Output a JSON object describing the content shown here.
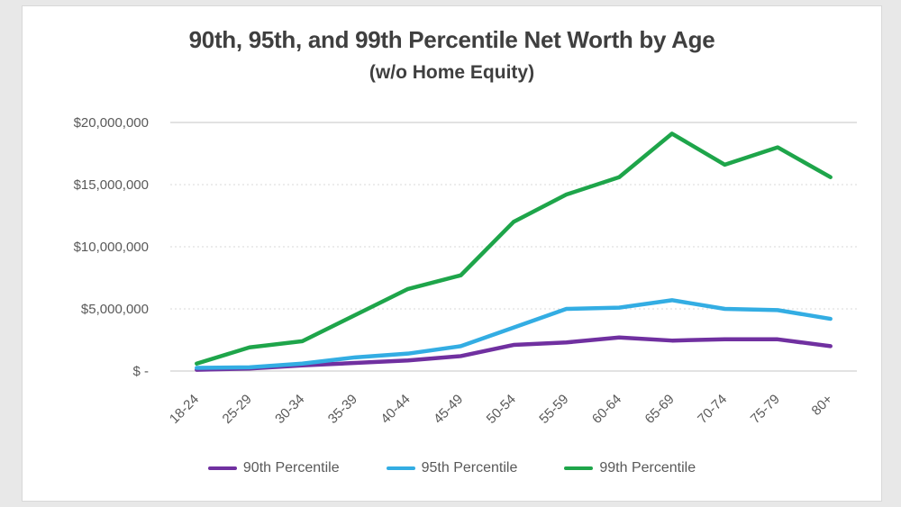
{
  "page": {
    "background_color": "#e8e8e8",
    "card_background": "#ffffff",
    "card_border_color": "#d8d8d8"
  },
  "chart_data": {
    "type": "line",
    "title": "90th, 95th, and 99th Percentile Net Worth by Age",
    "subtitle": "(w/o Home Equity)",
    "title_color": "#3f3f3f",
    "axis_label_color": "#595959",
    "gridline_color": "#d9d9d9",
    "axis_line_color": "#c6c6c6",
    "grid": true,
    "legend_position": "bottom",
    "categories": [
      "18-24",
      "25-29",
      "30-34",
      "35-39",
      "40-44",
      "45-49",
      "50-54",
      "55-59",
      "60-64",
      "65-69",
      "70-74",
      "75-79",
      "80+"
    ],
    "ylim": [
      0,
      20000000
    ],
    "y_ticks": [
      {
        "value": 0,
        "label": "$ -"
      },
      {
        "value": 5000000,
        "label": "$5,000,000"
      },
      {
        "value": 10000000,
        "label": "$10,000,000"
      },
      {
        "value": 15000000,
        "label": "$15,000,000"
      },
      {
        "value": 20000000,
        "label": "$20,000,000"
      }
    ],
    "series": [
      {
        "name": "90th Percentile",
        "color": "#7030A0",
        "values": [
          100000,
          200000,
          450000,
          650000,
          850000,
          1200000,
          2100000,
          2300000,
          2700000,
          2450000,
          2550000,
          2550000,
          2000000
        ]
      },
      {
        "name": "95th Percentile",
        "color": "#33ADE3",
        "values": [
          250000,
          300000,
          600000,
          1100000,
          1400000,
          2000000,
          3500000,
          5000000,
          5100000,
          5700000,
          5000000,
          4900000,
          4200000
        ]
      },
      {
        "name": "99th Percentile",
        "color": "#1EA54A",
        "values": [
          600000,
          1900000,
          2400000,
          4500000,
          6600000,
          7700000,
          12000000,
          14200000,
          15600000,
          19100000,
          16600000,
          18000000,
          15600000
        ]
      }
    ]
  }
}
